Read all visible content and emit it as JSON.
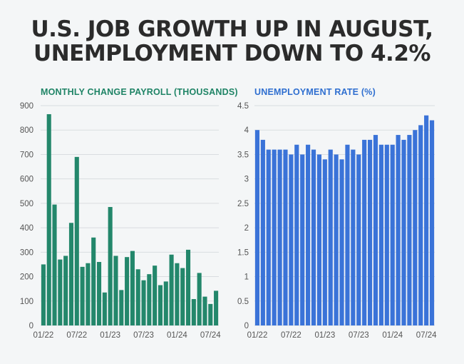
{
  "title_line1": "U.S. JOB GROWTH UP IN AUGUST,",
  "title_line2": "UNEMPLOYMENT DOWN TO 4.2%",
  "colors": {
    "payroll": "#23876b",
    "unemployment": "#3a73d8",
    "title": "#2b2b2b"
  },
  "chart_data": [
    {
      "type": "bar",
      "title": "MONTHLY CHANGE PAYROLL (THOUSANDS)",
      "ylim": [
        0,
        900
      ],
      "yticks": [
        "0",
        "100",
        "200",
        "300",
        "400",
        "500",
        "600",
        "700",
        "800",
        "900"
      ],
      "xticks": [
        "01/22",
        "07/22",
        "01/23",
        "07/23",
        "01/24",
        "07/24"
      ],
      "categories": [
        "01/22",
        "02/22",
        "03/22",
        "04/22",
        "05/22",
        "06/22",
        "07/22",
        "08/22",
        "09/22",
        "10/22",
        "11/22",
        "12/22",
        "01/23",
        "02/23",
        "03/23",
        "04/23",
        "05/23",
        "06/23",
        "07/23",
        "08/23",
        "09/23",
        "10/23",
        "11/23",
        "12/23",
        "01/24",
        "02/24",
        "03/24",
        "04/24",
        "05/24",
        "06/24",
        "07/24",
        "08/24"
      ],
      "values": [
        250,
        865,
        495,
        270,
        285,
        420,
        690,
        240,
        255,
        360,
        260,
        135,
        485,
        285,
        145,
        280,
        305,
        230,
        185,
        210,
        245,
        165,
        180,
        290,
        255,
        235,
        310,
        108,
        215,
        118,
        88,
        142
      ],
      "grid": true
    },
    {
      "type": "bar",
      "title": "UNEMPLOYMENT RATE (%)",
      "ylim": [
        0,
        4.5
      ],
      "yticks": [
        "0",
        "0.5",
        "1",
        "1.5",
        "2",
        "2.5",
        "3",
        "3.5",
        "4",
        "4.5"
      ],
      "xticks": [
        "01/22",
        "07/22",
        "01/23",
        "07/23",
        "01/24",
        "07/24"
      ],
      "categories": [
        "01/22",
        "02/22",
        "03/22",
        "04/22",
        "05/22",
        "06/22",
        "07/22",
        "08/22",
        "09/22",
        "10/22",
        "11/22",
        "12/22",
        "01/23",
        "02/23",
        "03/23",
        "04/23",
        "05/23",
        "06/23",
        "07/23",
        "08/23",
        "09/23",
        "10/23",
        "11/23",
        "12/23",
        "01/24",
        "02/24",
        "03/24",
        "04/24",
        "05/24",
        "06/24",
        "07/24",
        "08/24"
      ],
      "values": [
        4.0,
        3.8,
        3.6,
        3.6,
        3.6,
        3.6,
        3.5,
        3.7,
        3.5,
        3.7,
        3.6,
        3.5,
        3.4,
        3.6,
        3.5,
        3.4,
        3.7,
        3.6,
        3.5,
        3.8,
        3.8,
        3.9,
        3.7,
        3.7,
        3.7,
        3.9,
        3.8,
        3.9,
        4.0,
        4.1,
        4.3,
        4.2
      ],
      "grid": true
    }
  ]
}
